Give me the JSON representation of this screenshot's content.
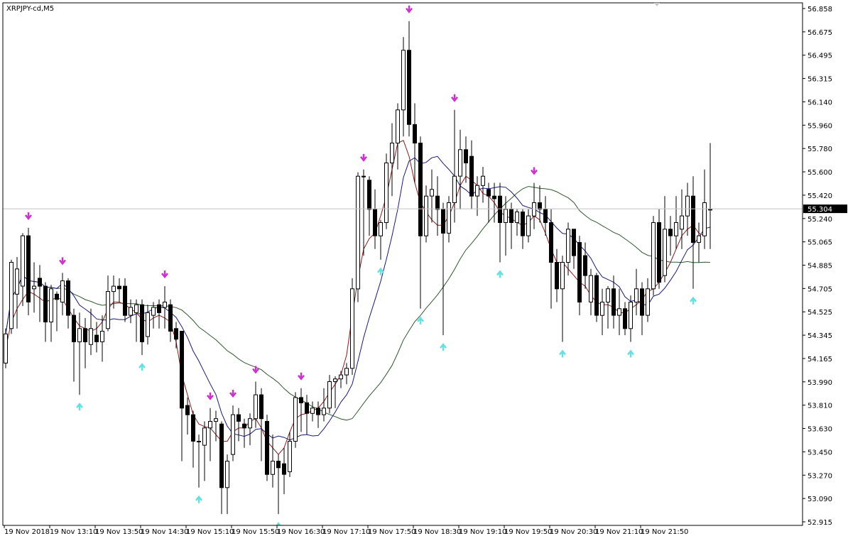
{
  "window": {
    "symbol_label": "XRPJPY-cd,M5"
  },
  "colors": {
    "background": "#ffffff",
    "axis": "#000000",
    "bull_candle_fill": "#ffffff",
    "bear_candle_fill": "#000000",
    "candle_outline": "#000000",
    "ma_fast": "#8b1a1a",
    "ma_medium": "#1a1a7a",
    "ma_slow": "#2d5a2d",
    "arrow_down": "#cc33cc",
    "arrow_up": "#66e0e0",
    "current_price_line": "#c0c0c0",
    "current_price_tag": "#000000"
  },
  "chart_data": {
    "type": "candlestick",
    "symbol": "XRPJPY-cd",
    "timeframe": "M5",
    "ylim": [
      52.915,
      56.858
    ],
    "y_ticks": [
      "56.858",
      "56.675",
      "56.495",
      "56.315",
      "56.140",
      "55.960",
      "55.780",
      "55.600",
      "55.420",
      "55.240",
      "55.065",
      "54.885",
      "54.705",
      "54.525",
      "54.345",
      "54.165",
      "53.990",
      "53.810",
      "53.630",
      "53.450",
      "53.270",
      "53.090",
      "52.915"
    ],
    "x_ticks": [
      "19 Nov 2018",
      "19 Nov 13:10",
      "19 Nov 13:50",
      "19 Nov 14:30",
      "19 Nov 15:10",
      "19 Nov 15:50",
      "19 Nov 16:30",
      "19 Nov 17:10",
      "19 Nov 17:50",
      "19 Nov 18:30",
      "19 Nov 19:10",
      "19 Nov 19:50",
      "19 Nov 20:30",
      "19 Nov 21:10",
      "19 Nov 21:50"
    ],
    "current_price": "55.304",
    "candles": [
      [
        54.14,
        54.36,
        54.1,
        54.4
      ],
      [
        54.4,
        54.9,
        54.36,
        54.92
      ],
      [
        54.66,
        54.85,
        54.4,
        54.94
      ],
      [
        54.72,
        55.1,
        54.57,
        55.12
      ],
      [
        55.1,
        54.6,
        54.5,
        55.16
      ],
      [
        54.7,
        54.72,
        54.52,
        54.9
      ],
      [
        54.78,
        54.72,
        54.45,
        54.88
      ],
      [
        54.72,
        54.45,
        54.3,
        54.75
      ],
      [
        54.45,
        54.7,
        54.3,
        54.73
      ],
      [
        54.66,
        54.62,
        54.38,
        54.68
      ],
      [
        54.6,
        54.76,
        54.5,
        54.82
      ],
      [
        54.76,
        54.5,
        54.4,
        54.78
      ],
      [
        54.5,
        54.3,
        54.0,
        54.55
      ],
      [
        54.3,
        54.4,
        53.9,
        54.52
      ],
      [
        54.4,
        54.3,
        54.1,
        54.48
      ],
      [
        54.28,
        54.4,
        54.2,
        54.55
      ],
      [
        54.35,
        54.3,
        54.22,
        54.45
      ],
      [
        54.3,
        54.38,
        54.15,
        54.5
      ],
      [
        54.4,
        54.68,
        54.38,
        54.8
      ],
      [
        54.68,
        54.72,
        54.55,
        54.8
      ],
      [
        54.72,
        54.7,
        54.6,
        54.78
      ],
      [
        54.72,
        54.5,
        54.45,
        54.78
      ],
      [
        54.5,
        54.56,
        54.44,
        54.62
      ],
      [
        54.52,
        54.58,
        54.3,
        54.62
      ],
      [
        54.58,
        54.3,
        54.2,
        54.62
      ],
      [
        54.34,
        54.52,
        54.28,
        54.58
      ],
      [
        54.5,
        54.56,
        54.4,
        54.6
      ],
      [
        54.58,
        54.52,
        54.4,
        54.62
      ],
      [
        54.56,
        54.6,
        54.4,
        54.72
      ],
      [
        54.58,
        54.38,
        54.3,
        54.62
      ],
      [
        54.4,
        54.32,
        54.25,
        54.45
      ],
      [
        54.38,
        53.8,
        53.4,
        54.38
      ],
      [
        53.82,
        53.75,
        53.6,
        53.88
      ],
      [
        53.75,
        53.55,
        53.35,
        53.78
      ],
      [
        53.55,
        53.55,
        53.2,
        53.6
      ],
      [
        53.52,
        53.65,
        53.25,
        53.7
      ],
      [
        53.65,
        53.7,
        53.4,
        53.8
      ],
      [
        53.7,
        53.72,
        53.55,
        53.78
      ],
      [
        53.68,
        53.2,
        53.0,
        53.7
      ],
      [
        53.2,
        53.4,
        53.0,
        53.45
      ],
      [
        53.45,
        53.75,
        53.4,
        53.82
      ],
      [
        53.75,
        53.7,
        53.55,
        53.8
      ],
      [
        53.68,
        53.65,
        53.5,
        53.72
      ],
      [
        53.65,
        53.72,
        53.52,
        53.76
      ],
      [
        53.72,
        53.9,
        53.65,
        54.0
      ],
      [
        53.9,
        53.72,
        53.4,
        53.95
      ],
      [
        53.7,
        53.3,
        53.25,
        53.75
      ],
      [
        53.3,
        53.4,
        53.2,
        53.6
      ],
      [
        53.4,
        53.35,
        53.0,
        53.45
      ],
      [
        53.38,
        53.3,
        53.15,
        53.5
      ],
      [
        53.32,
        53.55,
        53.28,
        53.62
      ],
      [
        53.55,
        53.88,
        53.5,
        53.92
      ],
      [
        53.88,
        53.84,
        53.62,
        53.95
      ],
      [
        53.84,
        53.76,
        53.6,
        53.9
      ],
      [
        53.76,
        53.8,
        53.7,
        53.85
      ],
      [
        53.8,
        53.75,
        53.65,
        53.85
      ],
      [
        53.75,
        53.8,
        53.7,
        53.95
      ],
      [
        53.8,
        54.0,
        53.76,
        54.05
      ],
      [
        54.0,
        54.02,
        53.8,
        54.04
      ],
      [
        54.02,
        54.05,
        53.95,
        54.08
      ],
      [
        54.05,
        54.1,
        53.98,
        54.14
      ],
      [
        54.1,
        54.7,
        54.05,
        54.78
      ],
      [
        54.7,
        55.55,
        54.6,
        55.58
      ],
      [
        55.55,
        55.55,
        54.95,
        55.6
      ],
      [
        55.52,
        55.3,
        55.1,
        55.55
      ],
      [
        55.3,
        55.1,
        55.0,
        55.45
      ],
      [
        55.1,
        55.2,
        54.92,
        55.22
      ],
      [
        55.2,
        55.65,
        55.15,
        55.72
      ],
      [
        55.65,
        55.8,
        55.4,
        55.95
      ],
      [
        55.8,
        56.05,
        55.6,
        56.1
      ],
      [
        56.05,
        56.5,
        55.85,
        56.6
      ],
      [
        56.5,
        55.94,
        55.85,
        56.72
      ],
      [
        55.94,
        55.8,
        55.5,
        56.1
      ],
      [
        55.8,
        55.1,
        54.55,
        55.85
      ],
      [
        55.1,
        55.4,
        55.05,
        55.48
      ],
      [
        55.4,
        55.45,
        55.2,
        55.6
      ],
      [
        55.4,
        55.3,
        55.1,
        55.55
      ],
      [
        55.3,
        55.12,
        54.35,
        55.35
      ],
      [
        55.12,
        55.35,
        55.05,
        55.4
      ],
      [
        55.35,
        55.55,
        55.2,
        56.05
      ],
      [
        55.55,
        55.75,
        55.3,
        55.9
      ],
      [
        55.75,
        55.65,
        55.5,
        55.85
      ],
      [
        55.7,
        55.4,
        55.3,
        55.82
      ],
      [
        55.4,
        55.48,
        55.25,
        55.55
      ],
      [
        55.48,
        55.55,
        55.35,
        55.62
      ],
      [
        55.45,
        55.4,
        55.2,
        55.5
      ],
      [
        55.4,
        55.38,
        55.2,
        55.5
      ],
      [
        55.4,
        55.2,
        54.9,
        55.5
      ],
      [
        55.2,
        55.3,
        54.95,
        55.4
      ],
      [
        55.3,
        55.2,
        55.0,
        55.35
      ],
      [
        55.2,
        55.28,
        55.1,
        55.3
      ],
      [
        55.28,
        55.1,
        55.0,
        55.3
      ],
      [
        55.1,
        55.25,
        55.05,
        55.3
      ],
      [
        55.25,
        55.35,
        55.15,
        55.5
      ],
      [
        55.35,
        55.3,
        55.2,
        55.48
      ],
      [
        55.3,
        55.2,
        55.1,
        55.4
      ],
      [
        55.2,
        54.9,
        54.55,
        55.3
      ],
      [
        54.9,
        54.7,
        54.6,
        55.0
      ],
      [
        54.7,
        54.9,
        54.3,
        54.95
      ],
      [
        54.9,
        55.15,
        54.8,
        55.2
      ],
      [
        55.15,
        54.95,
        54.85,
        55.15
      ],
      [
        55.05,
        54.6,
        54.5,
        55.1
      ],
      [
        54.95,
        54.8,
        54.7,
        55.05
      ],
      [
        54.6,
        54.8,
        54.5,
        54.85
      ],
      [
        54.8,
        54.5,
        54.45,
        54.82
      ],
      [
        54.5,
        54.6,
        54.35,
        54.7
      ],
      [
        54.6,
        54.7,
        54.4,
        54.72
      ],
      [
        54.7,
        54.5,
        54.4,
        54.8
      ],
      [
        54.5,
        54.55,
        54.35,
        54.7
      ],
      [
        54.55,
        54.4,
        54.35,
        54.6
      ],
      [
        54.4,
        54.6,
        54.3,
        54.65
      ],
      [
        54.6,
        54.7,
        54.5,
        54.85
      ],
      [
        54.7,
        54.5,
        54.35,
        54.75
      ],
      [
        54.5,
        54.7,
        54.45,
        54.78
      ],
      [
        54.7,
        55.2,
        54.65,
        55.25
      ],
      [
        55.2,
        54.75,
        54.7,
        55.3
      ],
      [
        54.8,
        55.15,
        54.75,
        55.4
      ],
      [
        55.15,
        55.1,
        54.95,
        55.25
      ],
      [
        55.1,
        55.2,
        55.0,
        55.4
      ],
      [
        55.15,
        55.25,
        55.0,
        55.45
      ],
      [
        55.25,
        55.4,
        55.1,
        55.5
      ],
      [
        55.4,
        55.05,
        54.7,
        55.55
      ],
      [
        55.05,
        55.1,
        54.9,
        55.2
      ],
      [
        55.1,
        55.35,
        55.0,
        55.6
      ],
      [
        55.3,
        55.3,
        55.0,
        55.8
      ]
    ],
    "ma_fast": [
      54.25,
      54.45,
      54.55,
      54.62,
      54.68,
      54.66,
      54.63,
      54.6,
      54.62,
      54.63,
      54.62,
      54.55,
      54.48,
      54.42,
      54.4,
      54.38,
      54.4,
      54.45,
      54.55,
      54.6,
      54.6,
      54.58,
      54.55,
      54.52,
      54.47,
      54.45,
      54.48,
      54.5,
      54.48,
      54.45,
      54.3,
      54.05,
      53.9,
      53.75,
      53.68,
      53.66,
      53.65,
      53.6,
      53.55,
      53.55,
      53.62,
      53.65,
      53.65,
      53.7,
      53.72,
      53.65,
      53.55,
      53.5,
      53.45,
      53.5,
      53.62,
      53.72,
      53.75,
      53.76,
      53.78,
      53.8,
      53.85,
      53.92,
      53.98,
      54.05,
      54.2,
      54.5,
      54.78,
      55.0,
      55.08,
      55.12,
      55.25,
      55.4,
      55.6,
      55.8,
      55.82,
      55.7,
      55.5,
      55.35,
      55.28,
      55.22,
      55.18,
      55.18,
      55.25,
      55.35,
      55.48,
      55.55,
      55.52,
      55.48,
      55.42,
      55.4,
      55.35,
      55.28,
      55.25,
      55.23,
      55.2,
      55.18,
      55.2,
      55.25,
      55.22,
      55.12,
      55.0,
      54.9,
      54.9,
      54.85,
      54.8,
      54.75,
      54.72,
      54.65,
      54.6,
      54.58,
      54.58,
      54.56,
      54.52,
      54.52,
      54.55,
      54.58,
      54.62,
      54.68,
      54.7,
      54.75,
      54.82,
      54.9,
      55.0,
      55.1,
      55.15,
      55.18,
      55.12,
      55.1
    ]
  }
}
